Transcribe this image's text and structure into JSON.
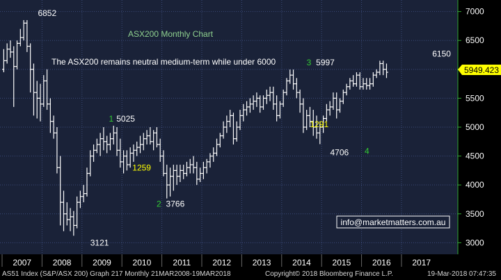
{
  "chart_data": {
    "type": "bar",
    "subtype": "ohlc-monthly",
    "title": "ASX200 Monthly Chart",
    "subtitle": "The ASX200 remains neutral medium-term while under 6000",
    "ylim": [
      2800,
      7200
    ],
    "y_ticks": [
      3000,
      3500,
      4000,
      4500,
      5000,
      5500,
      6000,
      6500,
      7000
    ],
    "x_ticks": [
      "2007",
      "2008",
      "2009",
      "2010",
      "2011",
      "2012",
      "2013",
      "2014",
      "2015",
      "2016",
      "2017"
    ],
    "grid": true,
    "last_price_label": "5949.423",
    "contact": "info@marketmatters.com.au",
    "colors": {
      "background": "#000000",
      "plot_bg": "#1a2238",
      "grid": "#3b4a78",
      "bars": "#ffffff",
      "title": "#8fd18f",
      "wave_count": "#33cc33",
      "yellow_label": "#ffff00",
      "price_box": "#ffff00",
      "axis": "#33aa33"
    },
    "annotations": [
      {
        "text": "6852",
        "x": "2007-10",
        "y": 6852,
        "color": "white"
      },
      {
        "text": "3121",
        "x": "2009-03",
        "y": 3121,
        "color": "white"
      },
      {
        "text": "1",
        "x": "2009-09",
        "y": 5025,
        "color": "green"
      },
      {
        "text": "5025",
        "x": "2009-10",
        "y": 5025,
        "color": "white"
      },
      {
        "text": "1259",
        "x": "2010-07",
        "y": 4250,
        "color": "yellow"
      },
      {
        "text": "2",
        "x": "2011-01",
        "y": 3766,
        "color": "green"
      },
      {
        "text": "3766",
        "x": "2011-03",
        "y": 3766,
        "color": "white"
      },
      {
        "text": "3",
        "x": "2014-08",
        "y": 5997,
        "color": "green"
      },
      {
        "text": "5997",
        "x": "2015-03",
        "y": 5997,
        "color": "white"
      },
      {
        "text": "1291",
        "x": "2014-09",
        "y": 5000,
        "color": "yellow"
      },
      {
        "text": "4706",
        "x": "2015-06",
        "y": 4706,
        "color": "white"
      },
      {
        "text": "4",
        "x": "2016-01",
        "y": 4706,
        "color": "green"
      },
      {
        "text": "6150",
        "x": "2017-11",
        "y": 6150,
        "color": "white"
      }
    ],
    "bars": [
      {
        "o": 6000,
        "h": 6350,
        "l": 5950,
        "c": 6150
      },
      {
        "o": 6150,
        "h": 6450,
        "l": 6100,
        "c": 6350
      },
      {
        "o": 6350,
        "h": 6500,
        "l": 6200,
        "c": 6300
      },
      {
        "o": 6300,
        "h": 6400,
        "l": 5350,
        "c": 6050
      },
      {
        "o": 6050,
        "h": 6500,
        "l": 6000,
        "c": 6450
      },
      {
        "o": 6450,
        "h": 6700,
        "l": 6400,
        "c": 6550
      },
      {
        "o": 6550,
        "h": 6852,
        "l": 6500,
        "c": 6800
      },
      {
        "o": 6800,
        "h": 6852,
        "l": 6300,
        "c": 6400
      },
      {
        "o": 6400,
        "h": 6450,
        "l": 5600,
        "c": 6000
      },
      {
        "o": 6000,
        "h": 6100,
        "l": 5200,
        "c": 5600
      },
      {
        "o": 5600,
        "h": 5800,
        "l": 5150,
        "c": 5500
      },
      {
        "o": 5500,
        "h": 5750,
        "l": 5100,
        "c": 5400
      },
      {
        "o": 5400,
        "h": 5900,
        "l": 5350,
        "c": 5800
      },
      {
        "o": 5800,
        "h": 6000,
        "l": 5300,
        "c": 5400
      },
      {
        "o": 5400,
        "h": 5500,
        "l": 4900,
        "c": 5100
      },
      {
        "o": 5100,
        "h": 5200,
        "l": 4800,
        "c": 4900
      },
      {
        "o": 4900,
        "h": 5000,
        "l": 4200,
        "c": 4300
      },
      {
        "o": 4300,
        "h": 4500,
        "l": 3300,
        "c": 3700
      },
      {
        "o": 3700,
        "h": 3900,
        "l": 3200,
        "c": 3500
      },
      {
        "o": 3500,
        "h": 3700,
        "l": 3300,
        "c": 3400
      },
      {
        "o": 3400,
        "h": 3600,
        "l": 3200,
        "c": 3450
      },
      {
        "o": 3450,
        "h": 3550,
        "l": 3121,
        "c": 3300
      },
      {
        "o": 3300,
        "h": 3800,
        "l": 3250,
        "c": 3700
      },
      {
        "o": 3700,
        "h": 3900,
        "l": 3600,
        "c": 3800
      },
      {
        "o": 3800,
        "h": 4000,
        "l": 3700,
        "c": 3850
      },
      {
        "o": 3850,
        "h": 4300,
        "l": 3800,
        "c": 4200
      },
      {
        "o": 4200,
        "h": 4600,
        "l": 4150,
        "c": 4500
      },
      {
        "o": 4500,
        "h": 4700,
        "l": 4400,
        "c": 4600
      },
      {
        "o": 4600,
        "h": 4800,
        "l": 4550,
        "c": 4700
      },
      {
        "o": 4700,
        "h": 4900,
        "l": 4500,
        "c": 4800
      },
      {
        "o": 4800,
        "h": 5000,
        "l": 4600,
        "c": 4750
      },
      {
        "o": 4750,
        "h": 4850,
        "l": 4550,
        "c": 4700
      },
      {
        "o": 4700,
        "h": 4900,
        "l": 4600,
        "c": 4800
      },
      {
        "o": 4800,
        "h": 5025,
        "l": 4700,
        "c": 4900
      },
      {
        "o": 4900,
        "h": 5000,
        "l": 4500,
        "c": 4600
      },
      {
        "o": 4600,
        "h": 4800,
        "l": 4300,
        "c": 4400
      },
      {
        "o": 4400,
        "h": 4600,
        "l": 4200,
        "c": 4500
      },
      {
        "o": 4500,
        "h": 4600,
        "l": 4250,
        "c": 4350
      },
      {
        "o": 4350,
        "h": 4650,
        "l": 4300,
        "c": 4550
      },
      {
        "o": 4550,
        "h": 4700,
        "l": 4400,
        "c": 4600
      },
      {
        "o": 4600,
        "h": 4750,
        "l": 4500,
        "c": 4650
      },
      {
        "o": 4650,
        "h": 4850,
        "l": 4550,
        "c": 4700
      },
      {
        "o": 4700,
        "h": 4900,
        "l": 4600,
        "c": 4800
      },
      {
        "o": 4800,
        "h": 4950,
        "l": 4700,
        "c": 4850
      },
      {
        "o": 4850,
        "h": 5000,
        "l": 4700,
        "c": 4750
      },
      {
        "o": 4750,
        "h": 4950,
        "l": 4600,
        "c": 4900
      },
      {
        "o": 4900,
        "h": 5000,
        "l": 4650,
        "c": 4700
      },
      {
        "o": 4700,
        "h": 4800,
        "l": 4400,
        "c": 4500
      },
      {
        "o": 4500,
        "h": 4600,
        "l": 4150,
        "c": 4200
      },
      {
        "o": 4200,
        "h": 4350,
        "l": 3766,
        "c": 4000
      },
      {
        "o": 4000,
        "h": 4300,
        "l": 3800,
        "c": 4150
      },
      {
        "o": 4150,
        "h": 4350,
        "l": 3900,
        "c": 4250
      },
      {
        "o": 4250,
        "h": 4350,
        "l": 4000,
        "c": 4150
      },
      {
        "o": 4150,
        "h": 4350,
        "l": 4050,
        "c": 4250
      },
      {
        "o": 4250,
        "h": 4350,
        "l": 4100,
        "c": 4200
      },
      {
        "o": 4200,
        "h": 4400,
        "l": 4150,
        "c": 4300
      },
      {
        "o": 4300,
        "h": 4450,
        "l": 4200,
        "c": 4350
      },
      {
        "o": 4350,
        "h": 4500,
        "l": 4200,
        "c": 4300
      },
      {
        "o": 4300,
        "h": 4400,
        "l": 4000,
        "c": 4100
      },
      {
        "o": 4100,
        "h": 4300,
        "l": 4050,
        "c": 4200
      },
      {
        "o": 4200,
        "h": 4400,
        "l": 4100,
        "c": 4300
      },
      {
        "o": 4300,
        "h": 4450,
        "l": 4200,
        "c": 4400
      },
      {
        "o": 4400,
        "h": 4550,
        "l": 4300,
        "c": 4500
      },
      {
        "o": 4500,
        "h": 4650,
        "l": 4400,
        "c": 4550
      },
      {
        "o": 4550,
        "h": 4800,
        "l": 4500,
        "c": 4700
      },
      {
        "o": 4700,
        "h": 4900,
        "l": 4650,
        "c": 4850
      },
      {
        "o": 4850,
        "h": 5100,
        "l": 4800,
        "c": 5000
      },
      {
        "o": 5000,
        "h": 5200,
        "l": 4900,
        "c": 5100
      },
      {
        "o": 5100,
        "h": 5300,
        "l": 5000,
        "c": 5200
      },
      {
        "o": 5200,
        "h": 5250,
        "l": 4700,
        "c": 4800
      },
      {
        "o": 4800,
        "h": 5100,
        "l": 4750,
        "c": 5000
      },
      {
        "o": 5000,
        "h": 5300,
        "l": 4950,
        "c": 5200
      },
      {
        "o": 5200,
        "h": 5400,
        "l": 5100,
        "c": 5300
      },
      {
        "o": 5300,
        "h": 5450,
        "l": 5200,
        "c": 5350
      },
      {
        "o": 5350,
        "h": 5500,
        "l": 5250,
        "c": 5400
      },
      {
        "o": 5400,
        "h": 5550,
        "l": 5300,
        "c": 5450
      },
      {
        "o": 5450,
        "h": 5600,
        "l": 5350,
        "c": 5500
      },
      {
        "o": 5500,
        "h": 5550,
        "l": 5250,
        "c": 5350
      },
      {
        "o": 5350,
        "h": 5550,
        "l": 5300,
        "c": 5500
      },
      {
        "o": 5500,
        "h": 5650,
        "l": 5400,
        "c": 5550
      },
      {
        "o": 5550,
        "h": 5700,
        "l": 5450,
        "c": 5600
      },
      {
        "o": 5600,
        "h": 5700,
        "l": 5300,
        "c": 5400
      },
      {
        "o": 5400,
        "h": 5550,
        "l": 5100,
        "c": 5200
      },
      {
        "o": 5200,
        "h": 5450,
        "l": 5150,
        "c": 5400
      },
      {
        "o": 5400,
        "h": 5650,
        "l": 5350,
        "c": 5600
      },
      {
        "o": 5600,
        "h": 5850,
        "l": 5550,
        "c": 5800
      },
      {
        "o": 5800,
        "h": 5997,
        "l": 5750,
        "c": 5900
      },
      {
        "o": 5900,
        "h": 5997,
        "l": 5650,
        "c": 5750
      },
      {
        "o": 5750,
        "h": 5850,
        "l": 5500,
        "c": 5600
      },
      {
        "o": 5600,
        "h": 5650,
        "l": 5250,
        "c": 5400
      },
      {
        "o": 5400,
        "h": 5500,
        "l": 4900,
        "c": 5000
      },
      {
        "o": 5000,
        "h": 5300,
        "l": 4950,
        "c": 5200
      },
      {
        "o": 5200,
        "h": 5350,
        "l": 5000,
        "c": 5100
      },
      {
        "o": 5100,
        "h": 5300,
        "l": 4850,
        "c": 5000
      },
      {
        "o": 5000,
        "h": 5200,
        "l": 4800,
        "c": 4900
      },
      {
        "o": 4900,
        "h": 5100,
        "l": 4706,
        "c": 5000
      },
      {
        "o": 5000,
        "h": 5200,
        "l": 4900,
        "c": 5150
      },
      {
        "o": 5150,
        "h": 5400,
        "l": 5100,
        "c": 5300
      },
      {
        "o": 5300,
        "h": 5450,
        "l": 5200,
        "c": 5350
      },
      {
        "o": 5350,
        "h": 5600,
        "l": 5300,
        "c": 5500
      },
      {
        "o": 5500,
        "h": 5600,
        "l": 5150,
        "c": 5300
      },
      {
        "o": 5300,
        "h": 5500,
        "l": 5250,
        "c": 5450
      },
      {
        "o": 5450,
        "h": 5650,
        "l": 5400,
        "c": 5600
      },
      {
        "o": 5600,
        "h": 5750,
        "l": 5550,
        "c": 5700
      },
      {
        "o": 5700,
        "h": 5850,
        "l": 5650,
        "c": 5800
      },
      {
        "o": 5800,
        "h": 5900,
        "l": 5700,
        "c": 5750
      },
      {
        "o": 5750,
        "h": 5950,
        "l": 5700,
        "c": 5900
      },
      {
        "o": 5900,
        "h": 5950,
        "l": 5650,
        "c": 5700
      },
      {
        "o": 5700,
        "h": 5850,
        "l": 5650,
        "c": 5750
      },
      {
        "o": 5750,
        "h": 5850,
        "l": 5650,
        "c": 5720
      },
      {
        "o": 5720,
        "h": 5850,
        "l": 5650,
        "c": 5750
      },
      {
        "o": 5750,
        "h": 5950,
        "l": 5700,
        "c": 5900
      },
      {
        "o": 5900,
        "h": 6000,
        "l": 5850,
        "c": 5950
      },
      {
        "o": 5950,
        "h": 6150,
        "l": 5900,
        "c": 6100
      },
      {
        "o": 6100,
        "h": 6150,
        "l": 5900,
        "c": 6000
      },
      {
        "o": 6000,
        "h": 6100,
        "l": 5850,
        "c": 5949.423
      }
    ]
  },
  "footer": {
    "left": "AS51 Index (S&P/ASX 200) Graph 217  Monthly 21MAR2008-19MAR2018",
    "mid": "Copyright© 2018 Bloomberg Finance L.P.",
    "right": "19-Mar-2018 07:47:35"
  }
}
